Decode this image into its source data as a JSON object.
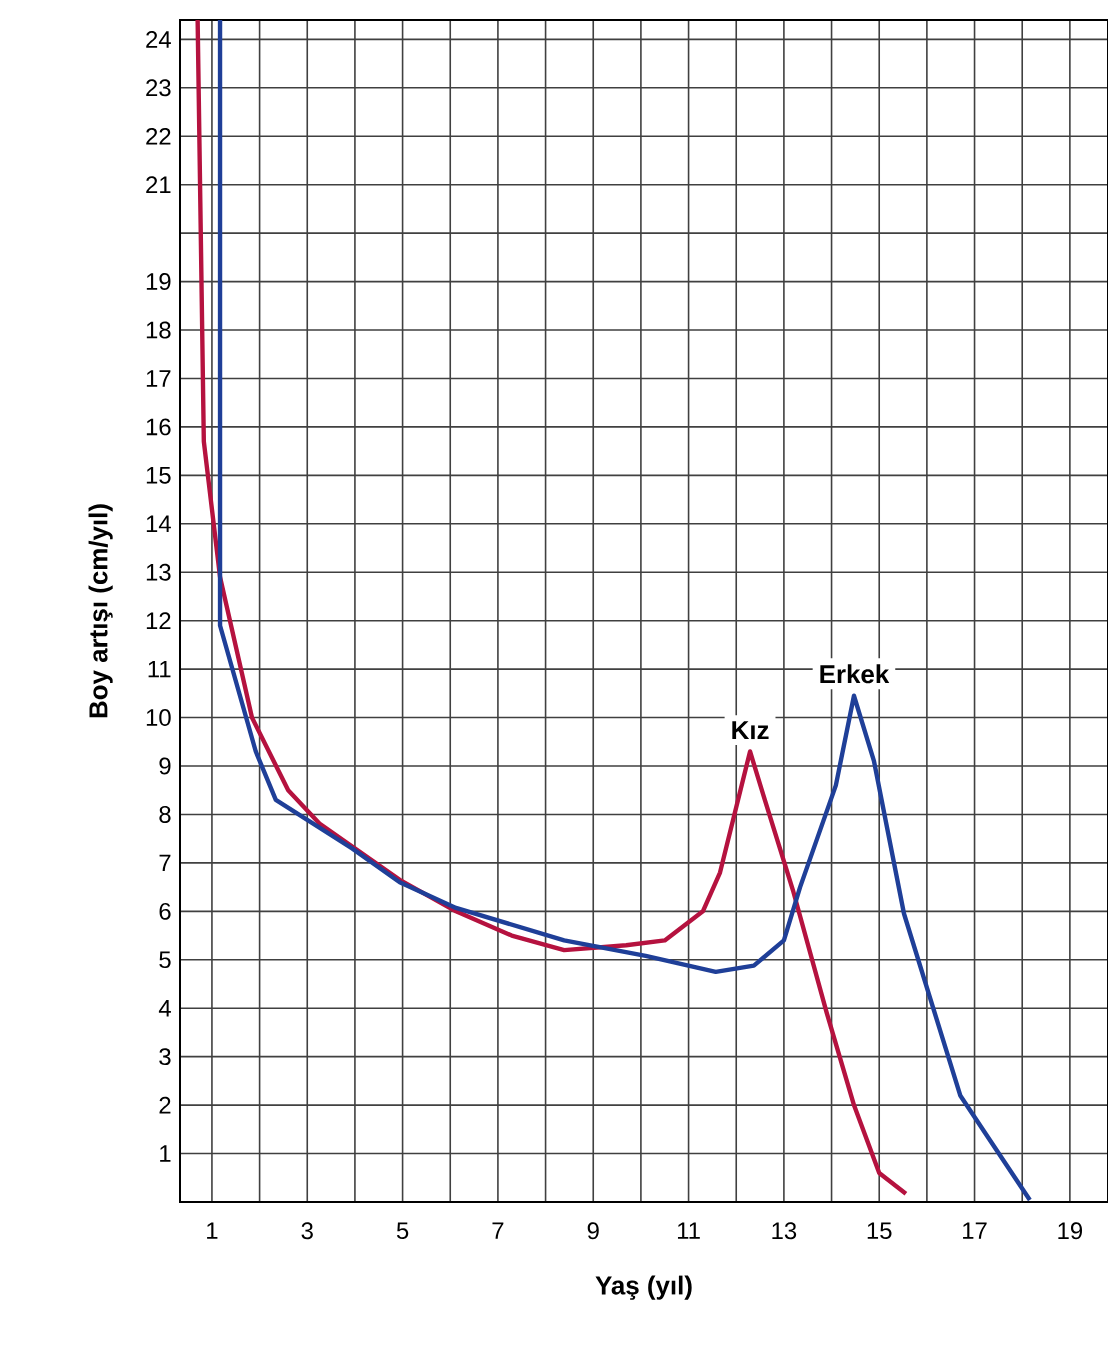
{
  "chart_data": {
    "type": "line",
    "xlabel": "Yaş (yıl)",
    "ylabel": "Boy artışı (cm/yıl)",
    "xlim": [
      0.33,
      19.8
    ],
    "ylim": [
      0,
      24.4
    ],
    "xticks": [
      1,
      {
        "value": 2,
        "label": null
      },
      3,
      {
        "value": 4,
        "label": null
      },
      5,
      {
        "value": 6,
        "label": null
      },
      7,
      {
        "value": 8,
        "label": null
      },
      9,
      {
        "value": 10,
        "label": null
      },
      11,
      {
        "value": 12,
        "label": null
      },
      13,
      {
        "value": 14,
        "label": null
      },
      15,
      {
        "value": 16,
        "label": null
      },
      17,
      {
        "value": 18,
        "label": null
      },
      19
    ],
    "yticks": [
      1,
      2,
      3,
      4,
      5,
      6,
      7,
      8,
      9,
      10,
      11,
      12,
      13,
      14,
      15,
      16,
      17,
      18,
      19,
      {
        "value": 20,
        "label": null
      },
      21,
      22,
      23,
      24
    ],
    "grid": true,
    "marker": "none",
    "line_style": "solid",
    "series": [
      {
        "name": "Kız",
        "color": "#b5123f",
        "x": [
          0.7,
          0.83,
          1.17,
          1.84,
          2.6,
          3.27,
          4.94,
          6.12,
          7.29,
          8.39,
          9.69,
          10.5,
          11.3,
          11.66,
          12.29,
          12.6,
          13.2,
          13.9,
          14.47,
          15.0,
          15.56
        ],
        "values": [
          24.4,
          15.7,
          12.9,
          10.0,
          8.5,
          7.8,
          6.65,
          6.0,
          5.5,
          5.2,
          5.3,
          5.4,
          6.0,
          6.8,
          9.3,
          8.3,
          6.4,
          3.9,
          2.0,
          0.6,
          0.17
        ]
      },
      {
        "name": "Erkek",
        "color": "#1f3f98",
        "x": [
          1.17,
          1.17,
          1.92,
          2.34,
          3.94,
          4.94,
          6.12,
          8.39,
          10.1,
          11.57,
          12.37,
          13.0,
          13.34,
          14.09,
          14.47,
          14.89,
          15.52,
          16.7,
          17.24,
          18.16
        ],
        "values": [
          24.4,
          11.9,
          9.3,
          8.3,
          7.3,
          6.6,
          6.07,
          5.4,
          5.08,
          4.75,
          4.88,
          5.4,
          6.5,
          8.6,
          10.45,
          9.1,
          5.95,
          2.2,
          1.4,
          0.04
        ]
      }
    ]
  }
}
